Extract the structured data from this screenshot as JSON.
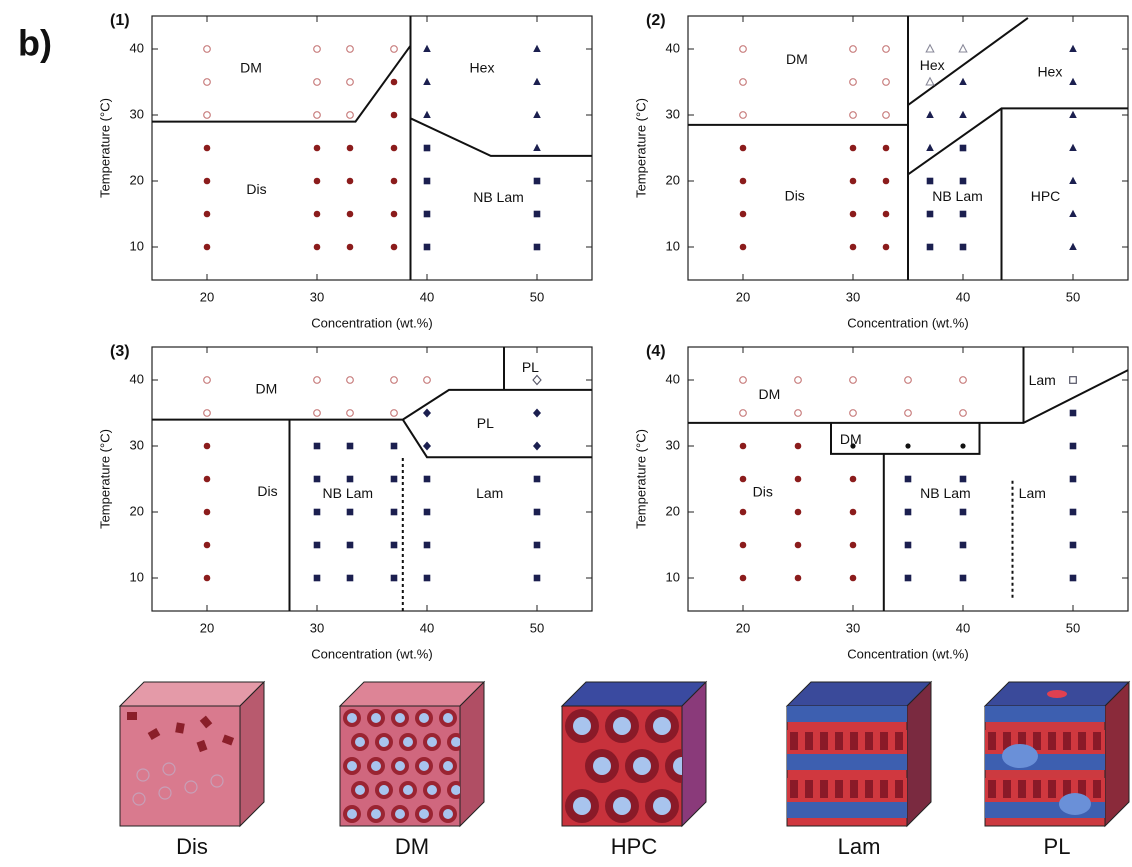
{
  "figure_label": "b)",
  "chart_data": [
    {
      "type": "scatter",
      "label": "(1)",
      "xlabel": "Concentration (wt.%)",
      "ylabel": "Temperature (°C)",
      "xlim": [
        15,
        55
      ],
      "ylim": [
        5,
        45
      ],
      "xticks": [
        20,
        30,
        40,
        50
      ],
      "yticks": [
        10,
        20,
        30,
        40
      ],
      "series": [
        {
          "marker": "circle-open",
          "color": "#c98080",
          "x": [
            20,
            20,
            20,
            30,
            30,
            30,
            33,
            33,
            33,
            37
          ],
          "y": [
            40,
            35,
            30,
            40,
            35,
            30,
            40,
            35,
            30,
            40
          ]
        },
        {
          "marker": "circle",
          "color": "#8b1c1c",
          "x": [
            20,
            20,
            20,
            20,
            30,
            30,
            30,
            30,
            33,
            33,
            33,
            33,
            37,
            37,
            37,
            37,
            37,
            37
          ],
          "y": [
            25,
            20,
            15,
            10,
            25,
            20,
            15,
            10,
            25,
            20,
            15,
            10,
            35,
            30,
            25,
            20,
            15,
            10
          ]
        },
        {
          "marker": "triangle",
          "color": "#1b1f4f",
          "x": [
            40,
            40,
            40,
            50,
            50,
            50,
            50
          ],
          "y": [
            40,
            35,
            30,
            40,
            35,
            30,
            25
          ]
        },
        {
          "marker": "square",
          "color": "#1b1f4f",
          "x": [
            40,
            40,
            40,
            40,
            50,
            50,
            50
          ],
          "y": [
            25,
            20,
            15,
            10,
            20,
            15,
            10
          ]
        }
      ],
      "boundaries": [
        {
          "x": [
            15,
            33.5,
            38.5
          ],
          "y": [
            29,
            29,
            40.5
          ]
        },
        {
          "x": [
            38.5,
            38.5
          ],
          "y": [
            5,
            45
          ]
        },
        {
          "x": [
            38.5,
            45.8,
            55
          ],
          "y": [
            29.5,
            23.8,
            23.8
          ]
        }
      ],
      "annotations": [
        {
          "text": "DM",
          "x": 24,
          "y": 37
        },
        {
          "text": "Dis",
          "x": 24.5,
          "y": 18.6
        },
        {
          "text": "Hex",
          "x": 45,
          "y": 37
        },
        {
          "text": "NB Lam",
          "x": 46.5,
          "y": 17.4
        }
      ]
    },
    {
      "type": "scatter",
      "label": "(2)",
      "xlabel": "Concentration (wt.%)",
      "ylabel": "Temperature (°C)",
      "xlim": [
        15,
        55
      ],
      "ylim": [
        5,
        45
      ],
      "xticks": [
        20,
        30,
        40,
        50
      ],
      "yticks": [
        10,
        20,
        30,
        40
      ],
      "series": [
        {
          "marker": "circle-open",
          "color": "#c98080",
          "x": [
            20,
            20,
            20,
            30,
            30,
            30,
            33,
            33,
            33
          ],
          "y": [
            40,
            35,
            30,
            40,
            35,
            30,
            40,
            35,
            30
          ]
        },
        {
          "marker": "circle",
          "color": "#8b1c1c",
          "x": [
            20,
            20,
            20,
            20,
            30,
            30,
            30,
            30,
            33,
            33,
            33,
            33
          ],
          "y": [
            25,
            20,
            15,
            10,
            25,
            20,
            15,
            10,
            25,
            20,
            15,
            10
          ]
        },
        {
          "marker": "triangle-open",
          "color": "#8a8a9a",
          "x": [
            37,
            37,
            40
          ],
          "y": [
            40,
            35,
            40
          ]
        },
        {
          "marker": "triangle",
          "color": "#1b1f4f",
          "x": [
            37,
            37,
            40,
            40,
            50,
            50,
            50,
            50,
            50,
            50,
            50
          ],
          "y": [
            30,
            25,
            35,
            30,
            40,
            35,
            30,
            25,
            20,
            15,
            10
          ]
        },
        {
          "marker": "square",
          "color": "#1b1f4f",
          "x": [
            37,
            37,
            37,
            40,
            40,
            40,
            40
          ],
          "y": [
            20,
            15,
            10,
            25,
            20,
            15,
            10
          ]
        }
      ],
      "boundaries": [
        {
          "x": [
            15,
            35
          ],
          "y": [
            28.5,
            28.5
          ]
        },
        {
          "x": [
            35,
            35
          ],
          "y": [
            5,
            45
          ]
        },
        {
          "x": [
            35,
            45.9
          ],
          "y": [
            31.5,
            44.7
          ]
        },
        {
          "x": [
            35,
            43.5,
            55
          ],
          "y": [
            21,
            31,
            31
          ]
        },
        {
          "x": [
            43.5,
            43.5
          ],
          "y": [
            5,
            31
          ]
        }
      ],
      "annotations": [
        {
          "text": "DM",
          "x": 24.9,
          "y": 38.3
        },
        {
          "text": "Hex",
          "x": 37.2,
          "y": 37.4
        },
        {
          "text": "Hex",
          "x": 47.9,
          "y": 36.4
        },
        {
          "text": "Dis",
          "x": 24.7,
          "y": 17.6
        },
        {
          "text": "NB Lam",
          "x": 39.5,
          "y": 17.5
        },
        {
          "text": "HPC",
          "x": 47.5,
          "y": 17.5
        }
      ]
    },
    {
      "type": "scatter",
      "label": "(3)",
      "xlabel": "Concentration (wt.%)",
      "ylabel": "Temperature (°C)",
      "xlim": [
        15,
        55
      ],
      "ylim": [
        5,
        45
      ],
      "xticks": [
        20,
        30,
        40,
        50
      ],
      "yticks": [
        10,
        20,
        30,
        40
      ],
      "series": [
        {
          "marker": "circle-open",
          "color": "#c98080",
          "x": [
            20,
            20,
            30,
            30,
            33,
            33,
            37,
            37,
            40
          ],
          "y": [
            40,
            35,
            40,
            35,
            40,
            35,
            40,
            35,
            40
          ]
        },
        {
          "marker": "circle",
          "color": "#8b1c1c",
          "x": [
            20,
            20,
            20,
            20,
            20
          ],
          "y": [
            30,
            25,
            20,
            15,
            10
          ]
        },
        {
          "marker": "square",
          "color": "#1b1f4f",
          "x": [
            30,
            30,
            30,
            30,
            30,
            33,
            33,
            33,
            33,
            33,
            37,
            37,
            37,
            37,
            37,
            40,
            40,
            40,
            40,
            50,
            50,
            50,
            50
          ],
          "y": [
            30,
            25,
            20,
            15,
            10,
            30,
            25,
            20,
            15,
            10,
            30,
            25,
            20,
            15,
            10,
            25,
            20,
            15,
            10,
            25,
            20,
            15,
            10
          ]
        },
        {
          "marker": "diamond",
          "color": "#1b1f4f",
          "x": [
            40,
            40,
            50,
            50
          ],
          "y": [
            35,
            30,
            35,
            30
          ]
        },
        {
          "marker": "diamond-open",
          "color": "#555566",
          "x": [
            50
          ],
          "y": [
            40
          ]
        }
      ],
      "boundaries": [
        {
          "x": [
            15,
            37.8,
            42,
            55
          ],
          "y": [
            34,
            34,
            38.5,
            38.5
          ]
        },
        {
          "x": [
            37.8,
            40,
            55
          ],
          "y": [
            34,
            28.3,
            28.3
          ]
        },
        {
          "x": [
            47,
            47
          ],
          "y": [
            38.5,
            45
          ]
        },
        {
          "x": [
            27.5,
            27.5
          ],
          "y": [
            5,
            34
          ]
        },
        {
          "x": [
            37.8,
            37.8
          ],
          "y": [
            5,
            28.3
          ],
          "dashed": true
        }
      ],
      "annotations": [
        {
          "text": "DM",
          "x": 25.4,
          "y": 38.5
        },
        {
          "text": "Dis",
          "x": 25.5,
          "y": 23
        },
        {
          "text": "NB Lam",
          "x": 32.8,
          "y": 22.7
        },
        {
          "text": "Lam",
          "x": 45.7,
          "y": 22.7
        },
        {
          "text": "PL",
          "x": 45.3,
          "y": 33.3
        },
        {
          "text": "PL",
          "x": 49.4,
          "y": 41.8
        }
      ]
    },
    {
      "type": "scatter",
      "label": "(4)",
      "xlabel": "Concentration (wt.%)",
      "ylabel": "Temperature (°C)",
      "xlim": [
        15,
        55
      ],
      "ylim": [
        5,
        45
      ],
      "xticks": [
        20,
        30,
        40,
        50
      ],
      "yticks": [
        10,
        20,
        30,
        40
      ],
      "series": [
        {
          "marker": "circle-open",
          "color": "#c98080",
          "x": [
            20,
            20,
            25,
            25,
            30,
            30,
            35,
            35,
            40,
            40
          ],
          "y": [
            40,
            35,
            40,
            35,
            40,
            35,
            40,
            35,
            40,
            35
          ]
        },
        {
          "marker": "square-open",
          "color": "#555566",
          "x": [
            50
          ],
          "y": [
            40
          ]
        },
        {
          "marker": "dot",
          "color": "#111111",
          "x": [
            30,
            35,
            40
          ],
          "y": [
            30,
            30,
            30
          ]
        },
        {
          "marker": "circle",
          "color": "#8b1c1c",
          "x": [
            20,
            20,
            20,
            20,
            20,
            25,
            25,
            25,
            25,
            25,
            30,
            30,
            30,
            30
          ],
          "y": [
            30,
            25,
            20,
            15,
            10,
            30,
            25,
            20,
            15,
            10,
            25,
            20,
            15,
            10
          ]
        },
        {
          "marker": "square",
          "color": "#1b1f4f",
          "x": [
            35,
            35,
            35,
            35,
            40,
            40,
            40,
            40,
            50,
            50,
            50,
            50,
            50,
            50
          ],
          "y": [
            25,
            20,
            15,
            10,
            25,
            20,
            15,
            10,
            35,
            30,
            25,
            20,
            15,
            10
          ]
        }
      ],
      "boundaries": [
        {
          "x": [
            15,
            45.5,
            55
          ],
          "y": [
            33.5,
            33.5,
            41.5
          ]
        },
        {
          "x": [
            45.5,
            45.5
          ],
          "y": [
            33.5,
            45
          ]
        },
        {
          "x": [
            28,
            28,
            41.5,
            41.5
          ],
          "y": [
            33.5,
            28.8,
            28.8,
            33.5
          ]
        },
        {
          "x": [
            32.8,
            32.8
          ],
          "y": [
            5,
            28.8
          ]
        },
        {
          "x": [
            44.5,
            44.5
          ],
          "y": [
            7,
            25
          ],
          "dashed": true
        }
      ],
      "annotations": [
        {
          "text": "DM",
          "x": 22.4,
          "y": 37.7
        },
        {
          "text": "DM",
          "x": 29.8,
          "y": 30.9
        },
        {
          "text": "Dis",
          "x": 21.8,
          "y": 22.9
        },
        {
          "text": "NB Lam",
          "x": 38.4,
          "y": 22.7
        },
        {
          "text": "Lam",
          "x": 46.3,
          "y": 22.7
        },
        {
          "text": "Lam",
          "x": 47.2,
          "y": 39.8
        }
      ]
    }
  ],
  "illustration_labels": [
    "Dis",
    "DM",
    "HPC",
    "Lam",
    "PL"
  ]
}
